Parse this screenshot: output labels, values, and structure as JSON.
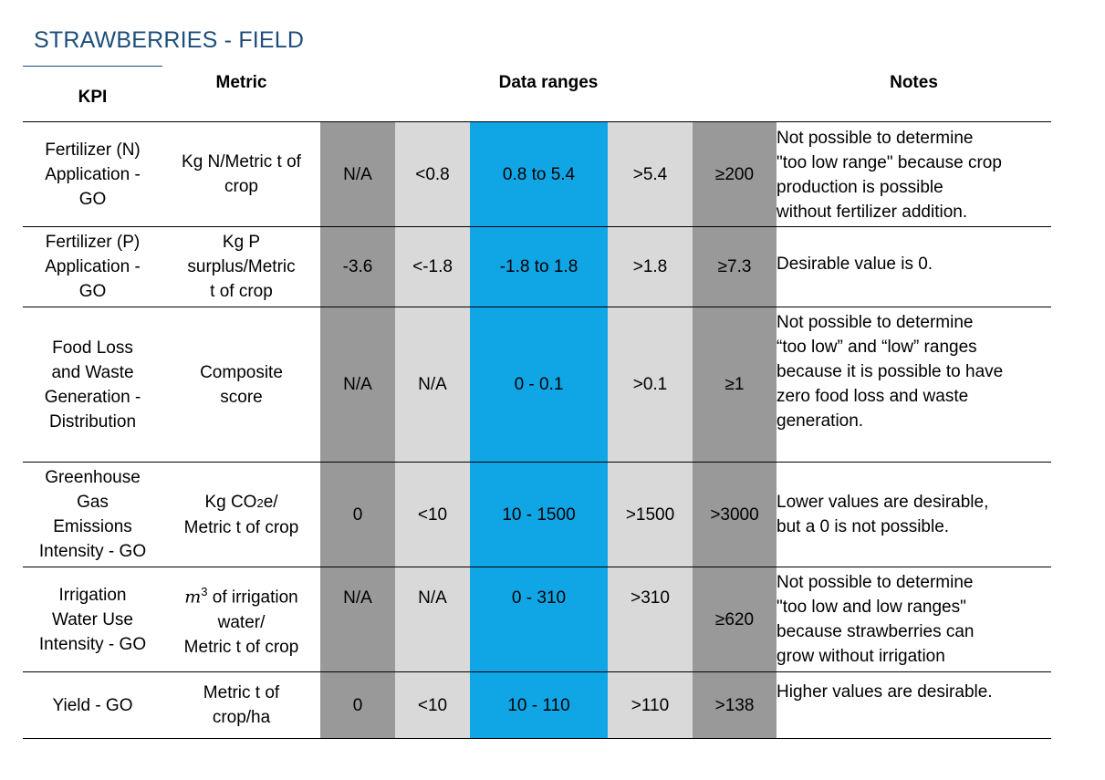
{
  "title": "STRAWBERRIES - FIELD",
  "headers": {
    "kpi": "KPI",
    "metric": "Metric",
    "ranges": "Data ranges",
    "notes": "Notes"
  },
  "range_colors": {
    "too_low": "#999999",
    "low": "#d9d9d9",
    "desirable": "#10a6e6",
    "high": "#d9d9d9",
    "too_high": "#999999"
  },
  "rows": [
    {
      "kpi": [
        "Fertilizer (N)",
        "Application -",
        "GO"
      ],
      "metric": [
        "Kg N/Metric t of",
        "crop"
      ],
      "ranges": [
        "N/A",
        "<0.8",
        "0.8 to 5.4",
        ">5.4",
        "≥200"
      ],
      "notes": [
        "Not possible to determine",
        "\"too low range\" because crop",
        "production is possible",
        "without fertilizer addition."
      ]
    },
    {
      "kpi": [
        "Fertilizer (P)",
        "Application -",
        "GO"
      ],
      "metric": [
        "Kg P",
        "surplus/Metric",
        "t of crop"
      ],
      "ranges": [
        "-3.6",
        "<-1.8",
        "-1.8 to 1.8",
        ">1.8",
        "≥7.3"
      ],
      "notes": [
        "Desirable value is 0."
      ]
    },
    {
      "kpi": [
        "Food Loss",
        "and Waste",
        "Generation -",
        "Distribution"
      ],
      "metric": [
        "Composite",
        "score"
      ],
      "ranges": [
        "N/A",
        "N/A",
        "0 - 0.1",
        ">0.1",
        "≥1"
      ],
      "notes": [
        "Not possible to determine",
        "“too low” and “low” ranges",
        "because it is possible to have",
        "zero food loss and waste",
        "generation."
      ]
    },
    {
      "kpi": [
        "Greenhouse",
        "Gas",
        "Emissions",
        "Intensity - GO"
      ],
      "metric_parts": {
        "line1_pre": "Kg CO",
        "line1_sub": "2",
        "line1_post": "e/",
        "line2": "Metric t of crop"
      },
      "ranges": [
        "0",
        "<10",
        "10 - 1500",
        ">1500",
        ">3000"
      ],
      "notes": [
        "Lower values are desirable,",
        "but a 0 is not possible."
      ]
    },
    {
      "kpi": [
        "Irrigation",
        "Water Use",
        "Intensity - GO"
      ],
      "metric_parts": {
        "m": "m",
        "exp": "3",
        "line1_post": " of irrigation",
        "line2": "water/",
        "line3": "Metric t of crop"
      },
      "ranges": [
        "N/A",
        "N/A",
        "0 - 310",
        ">310",
        "≥620"
      ],
      "notes": [
        "Not possible to determine",
        "\"too low and low ranges\"",
        "because strawberries can",
        "grow without irrigation"
      ]
    },
    {
      "kpi": [
        "Yield - GO"
      ],
      "metric": [
        "Metric t of",
        "crop/ha"
      ],
      "ranges": [
        "0",
        "<10",
        "10 - 110",
        ">110",
        ">138"
      ],
      "notes": [
        "Higher values are desirable."
      ]
    }
  ]
}
